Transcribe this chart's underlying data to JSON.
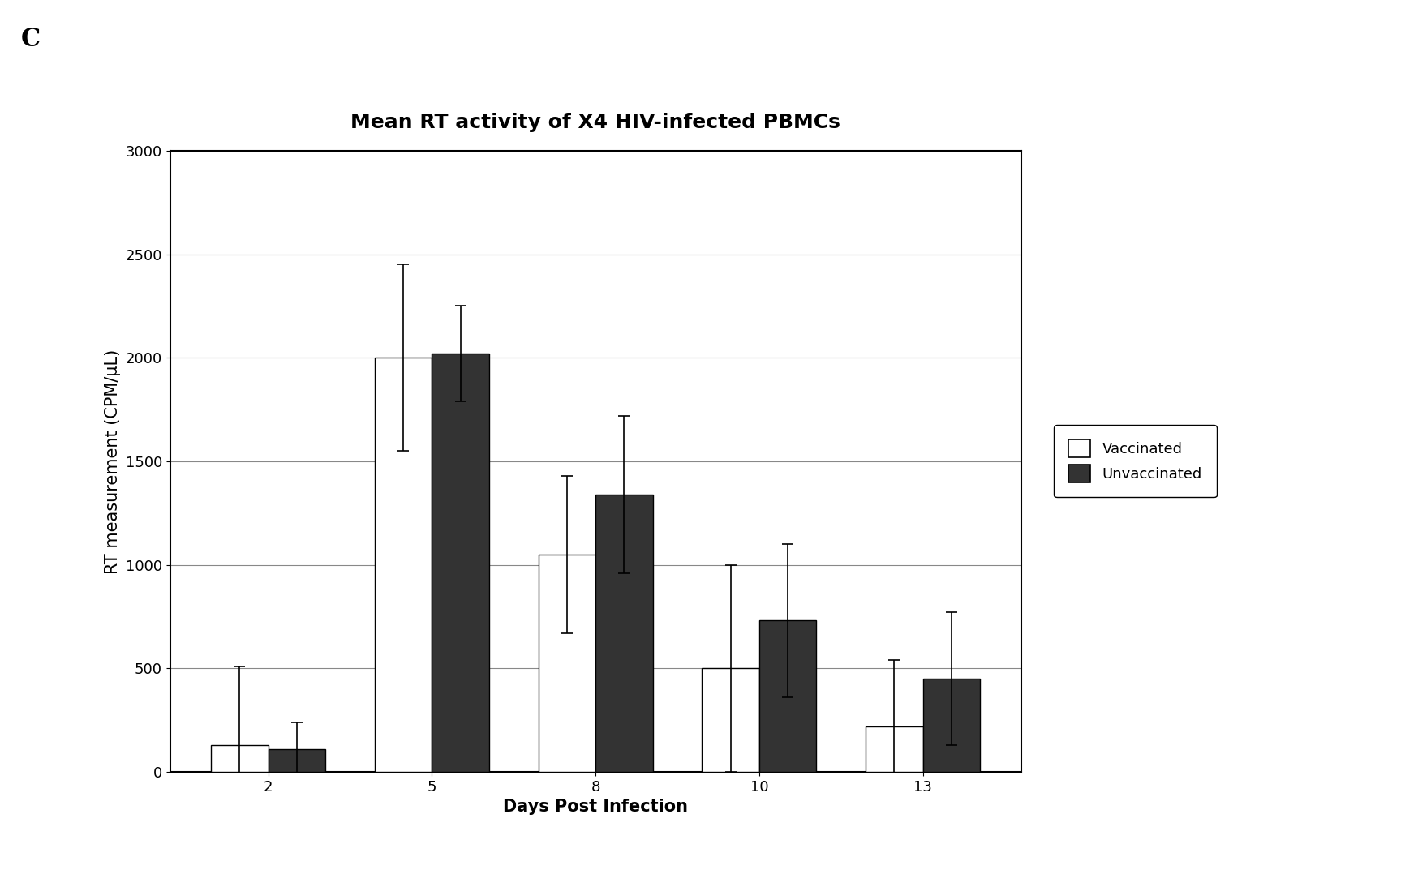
{
  "title": "Mean RT activity of X4 HIV-infected PBMCs",
  "xlabel": "Days Post Infection",
  "ylabel": "RT measurement (CPM/μL)",
  "panel_label": "C",
  "days": [
    2,
    5,
    8,
    10,
    13
  ],
  "vaccinated_values": [
    130,
    2000,
    1050,
    500,
    220
  ],
  "unvaccinated_values": [
    110,
    2020,
    1340,
    730,
    450
  ],
  "vaccinated_errors": [
    380,
    450,
    380,
    500,
    320
  ],
  "unvaccinated_errors": [
    130,
    230,
    380,
    370,
    320
  ],
  "ylim": [
    0,
    3000
  ],
  "yticks": [
    0,
    500,
    1000,
    1500,
    2000,
    2500,
    3000
  ],
  "bar_width": 0.35,
  "vaccinated_color": "#ffffff",
  "unvaccinated_color": "#333333",
  "background_color": "#ffffff",
  "grid_color": "#888888",
  "title_fontsize": 18,
  "label_fontsize": 15,
  "tick_fontsize": 13,
  "legend_fontsize": 13
}
